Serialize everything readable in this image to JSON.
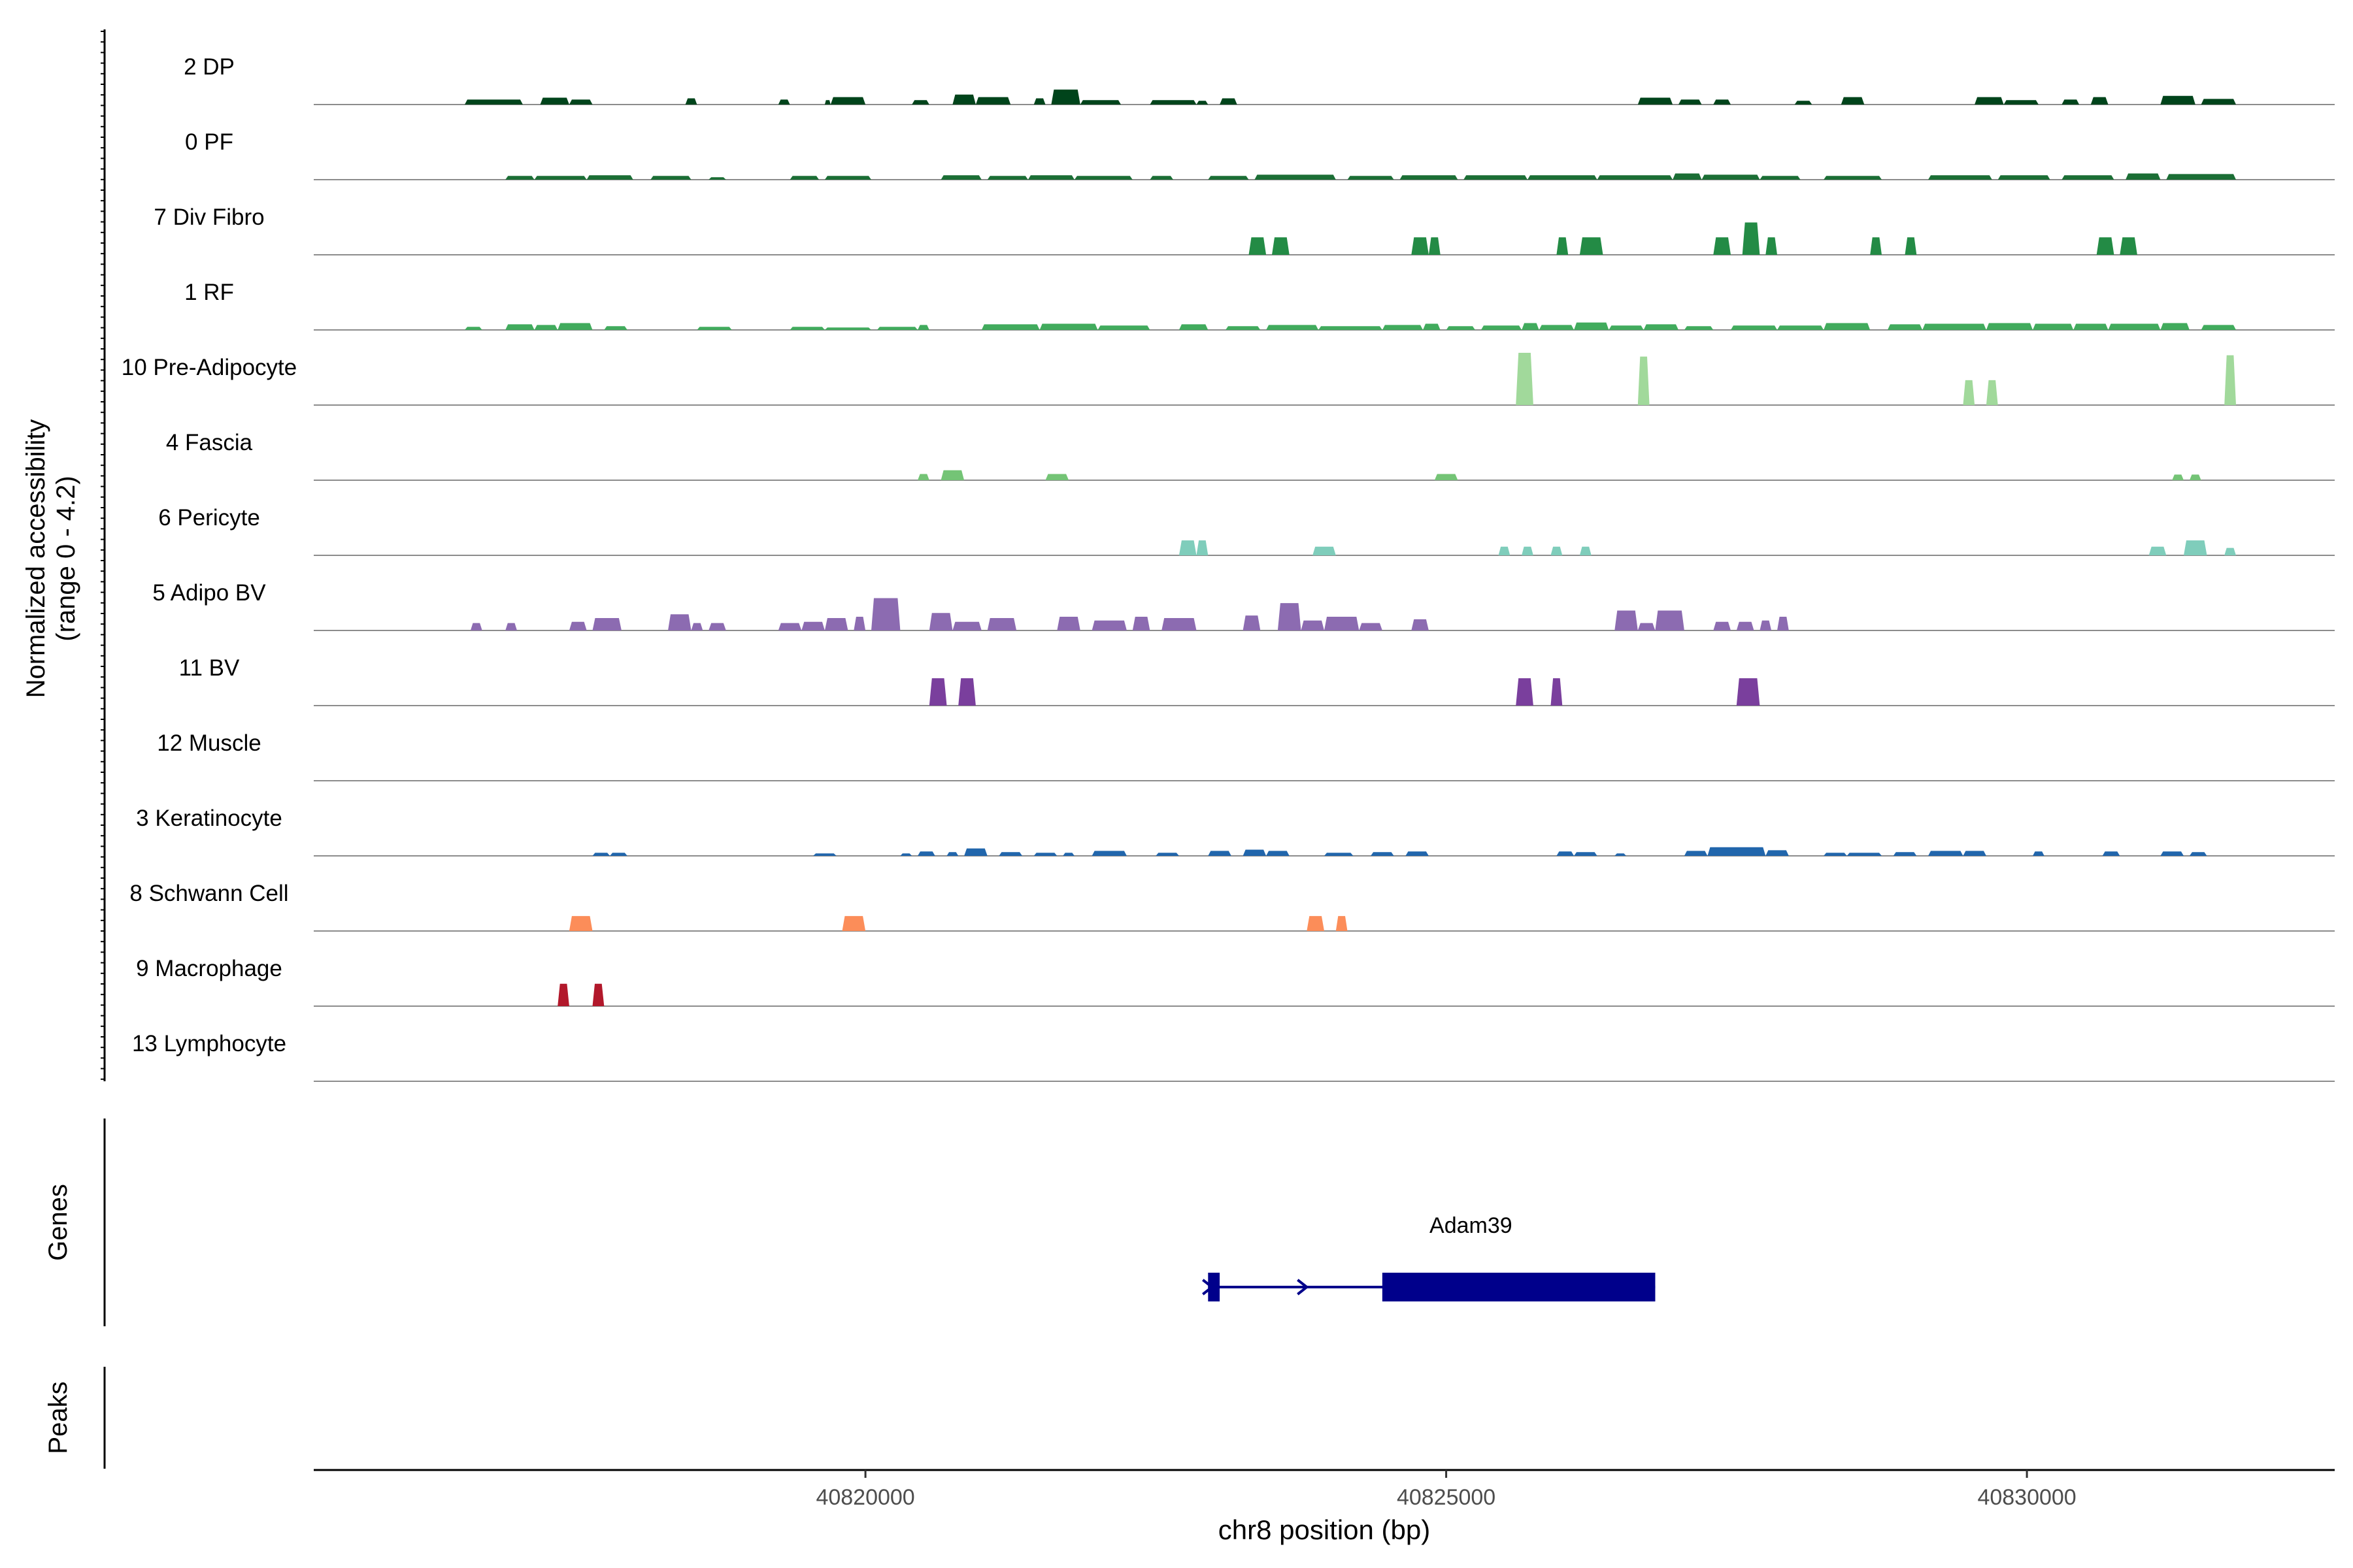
{
  "chart_data": {
    "type": "area",
    "title": "",
    "ylabel": "Normalized accessibility",
    "ylabel_sub": "(range 0 - 4.2)",
    "ylim": [
      0,
      4.2
    ],
    "xlabel": "chr8 position (bp)",
    "xlim": [
      40815250,
      40832650
    ],
    "xticks": [
      40820000,
      40825000,
      40830000
    ],
    "xtick_labels": [
      "40820000",
      "40825000",
      "40830000"
    ],
    "tracks": [
      {
        "name": "2 DP",
        "color": "#00441b",
        "peaks": [
          [
            40816550,
            40817050,
            0.4
          ],
          [
            40817200,
            40817450,
            0.55
          ],
          [
            40817450,
            40817650,
            0.4
          ],
          [
            40818450,
            40818550,
            0.5
          ],
          [
            40819250,
            40819350,
            0.4
          ],
          [
            40819650,
            40819700,
            0.35
          ],
          [
            40819700,
            40820000,
            0.6
          ],
          [
            40820400,
            40820550,
            0.35
          ],
          [
            40820750,
            40820950,
            0.8
          ],
          [
            40820950,
            40821250,
            0.6
          ],
          [
            40821450,
            40821550,
            0.5
          ],
          [
            40821600,
            40821850,
            1.2
          ],
          [
            40821850,
            40822200,
            0.35
          ],
          [
            40822450,
            40822850,
            0.35
          ],
          [
            40822850,
            40822950,
            0.3
          ],
          [
            40823050,
            40823200,
            0.5
          ],
          [
            40826650,
            40826950,
            0.55
          ],
          [
            40827000,
            40827200,
            0.4
          ],
          [
            40827300,
            40827450,
            0.4
          ],
          [
            40828000,
            40828150,
            0.3
          ],
          [
            40828400,
            40828600,
            0.6
          ],
          [
            40829550,
            40829800,
            0.6
          ],
          [
            40829800,
            40830100,
            0.35
          ],
          [
            40830300,
            40830450,
            0.4
          ],
          [
            40830550,
            40830700,
            0.6
          ],
          [
            40831150,
            40831450,
            0.7
          ],
          [
            40831500,
            40831800,
            0.45
          ]
        ]
      },
      {
        "name": "0 PF",
        "color": "#1b6e35",
        "peaks": [
          [
            40816900,
            40817150,
            0.3
          ],
          [
            40817150,
            40817600,
            0.3
          ],
          [
            40817600,
            40818000,
            0.35
          ],
          [
            40818150,
            40818500,
            0.3
          ],
          [
            40818650,
            40818800,
            0.2
          ],
          [
            40819350,
            40819600,
            0.3
          ],
          [
            40819650,
            40820050,
            0.3
          ],
          [
            40820650,
            40821000,
            0.35
          ],
          [
            40821050,
            40821400,
            0.3
          ],
          [
            40821400,
            40821800,
            0.35
          ],
          [
            40821800,
            40822300,
            0.3
          ],
          [
            40822450,
            40822650,
            0.3
          ],
          [
            40822950,
            40823300,
            0.3
          ],
          [
            40823350,
            40824050,
            0.4
          ],
          [
            40824150,
            40824550,
            0.3
          ],
          [
            40824600,
            40825100,
            0.35
          ],
          [
            40825150,
            40825700,
            0.35
          ],
          [
            40825700,
            40826300,
            0.35
          ],
          [
            40826300,
            40826950,
            0.35
          ],
          [
            40826950,
            40827200,
            0.5
          ],
          [
            40827200,
            40827700,
            0.4
          ],
          [
            40827700,
            40828050,
            0.3
          ],
          [
            40828250,
            40828750,
            0.3
          ],
          [
            40829150,
            40829700,
            0.35
          ],
          [
            40829750,
            40830200,
            0.35
          ],
          [
            40830300,
            40830750,
            0.35
          ],
          [
            40830850,
            40831150,
            0.5
          ],
          [
            40831200,
            40831800,
            0.45
          ]
        ]
      },
      {
        "name": "7 Div Fibro",
        "color": "#238b45",
        "peaks": [
          [
            40823300,
            40823450,
            1.4
          ],
          [
            40823500,
            40823650,
            1.4
          ],
          [
            40824700,
            40824850,
            1.4
          ],
          [
            40824850,
            40824950,
            1.4
          ],
          [
            40825950,
            40826050,
            1.4
          ],
          [
            40826150,
            40826350,
            1.4
          ],
          [
            40827300,
            40827450,
            1.4
          ],
          [
            40827550,
            40827700,
            2.6
          ],
          [
            40827750,
            40827850,
            1.4
          ],
          [
            40828650,
            40828750,
            1.4
          ],
          [
            40828950,
            40829050,
            1.4
          ],
          [
            40830600,
            40830750,
            1.4
          ],
          [
            40830800,
            40830950,
            1.4
          ]
        ]
      },
      {
        "name": "1 RF",
        "color": "#41ab5d",
        "peaks": [
          [
            40816550,
            40816700,
            0.25
          ],
          [
            40816900,
            40817150,
            0.45
          ],
          [
            40817150,
            40817350,
            0.4
          ],
          [
            40817350,
            40817650,
            0.55
          ],
          [
            40817750,
            40817950,
            0.3
          ],
          [
            40818550,
            40818850,
            0.25
          ],
          [
            40819350,
            40819650,
            0.25
          ],
          [
            40819650,
            40820050,
            0.2
          ],
          [
            40820100,
            40820450,
            0.25
          ],
          [
            40820450,
            40820550,
            0.4
          ],
          [
            40821000,
            40821500,
            0.45
          ],
          [
            40821500,
            40822000,
            0.5
          ],
          [
            40822000,
            40822450,
            0.35
          ],
          [
            40822700,
            40822950,
            0.45
          ],
          [
            40823100,
            40823400,
            0.3
          ],
          [
            40823450,
            40823900,
            0.4
          ],
          [
            40823900,
            40824450,
            0.3
          ],
          [
            40824450,
            40824800,
            0.4
          ],
          [
            40824800,
            40824950,
            0.5
          ],
          [
            40825000,
            40825250,
            0.3
          ],
          [
            40825300,
            40825650,
            0.35
          ],
          [
            40825650,
            40825800,
            0.55
          ],
          [
            40825800,
            40826100,
            0.4
          ],
          [
            40826100,
            40826400,
            0.6
          ],
          [
            40826400,
            40826700,
            0.35
          ],
          [
            40826700,
            40827000,
            0.45
          ],
          [
            40827050,
            40827300,
            0.3
          ],
          [
            40827450,
            40827850,
            0.35
          ],
          [
            40827850,
            40828250,
            0.35
          ],
          [
            40828250,
            40828650,
            0.55
          ],
          [
            40828800,
            40829100,
            0.45
          ],
          [
            40829100,
            40829650,
            0.5
          ],
          [
            40829650,
            40830050,
            0.55
          ],
          [
            40830050,
            40830400,
            0.5
          ],
          [
            40830400,
            40830700,
            0.5
          ],
          [
            40830700,
            40831150,
            0.5
          ],
          [
            40831150,
            40831400,
            0.55
          ],
          [
            40831500,
            40831800,
            0.4
          ]
        ]
      },
      {
        "name": "10 Pre-Adipocyte",
        "color": "#a1d99b",
        "peaks": [
          [
            40825600,
            40825750,
            4.2
          ],
          [
            40826650,
            40826750,
            3.9
          ],
          [
            40829450,
            40829550,
            2.0
          ],
          [
            40829650,
            40829750,
            2.0
          ],
          [
            40831700,
            40831800,
            4.0
          ]
        ]
      },
      {
        "name": "4 Fascia",
        "color": "#74c476",
        "peaks": [
          [
            40820450,
            40820550,
            0.5
          ],
          [
            40820650,
            40820850,
            0.8
          ],
          [
            40821550,
            40821750,
            0.5
          ],
          [
            40824900,
            40825100,
            0.5
          ],
          [
            40831250,
            40831350,
            0.45
          ],
          [
            40831400,
            40831500,
            0.45
          ]
        ]
      },
      {
        "name": "6 Pericyte",
        "color": "#7fcdbb",
        "peaks": [
          [
            40822700,
            40822850,
            1.2
          ],
          [
            40822850,
            40822950,
            1.2
          ],
          [
            40823850,
            40824050,
            0.7
          ],
          [
            40825450,
            40825550,
            0.7
          ],
          [
            40825650,
            40825750,
            0.7
          ],
          [
            40825900,
            40826000,
            0.7
          ],
          [
            40826150,
            40826250,
            0.7
          ],
          [
            40831050,
            40831200,
            0.7
          ],
          [
            40831350,
            40831550,
            1.2
          ],
          [
            40831700,
            40831800,
            0.6
          ]
        ]
      },
      {
        "name": "5 Adipo BV",
        "color": "#8c6bb1",
        "peaks": [
          [
            40816600,
            40816700,
            0.6
          ],
          [
            40816900,
            40817000,
            0.6
          ],
          [
            40817450,
            40817600,
            0.7
          ],
          [
            40817650,
            40817900,
            1.0
          ],
          [
            40818300,
            40818500,
            1.3
          ],
          [
            40818500,
            40818600,
            0.6
          ],
          [
            40818650,
            40818800,
            0.6
          ],
          [
            40819250,
            40819450,
            0.6
          ],
          [
            40819450,
            40819650,
            0.7
          ],
          [
            40819650,
            40819850,
            1.0
          ],
          [
            40819900,
            40820000,
            1.1
          ],
          [
            40820050,
            40820300,
            2.6
          ],
          [
            40820550,
            40820750,
            1.4
          ],
          [
            40820750,
            40821000,
            0.7
          ],
          [
            40821050,
            40821300,
            1.0
          ],
          [
            40821650,
            40821850,
            1.1
          ],
          [
            40821950,
            40822250,
            0.8
          ],
          [
            40822300,
            40822450,
            1.1
          ],
          [
            40822550,
            40822850,
            1.0
          ],
          [
            40823250,
            40823400,
            1.2
          ],
          [
            40823550,
            40823750,
            2.2
          ],
          [
            40823750,
            40823950,
            0.8
          ],
          [
            40823950,
            40824250,
            1.1
          ],
          [
            40824250,
            40824450,
            0.6
          ],
          [
            40824700,
            40824850,
            0.9
          ],
          [
            40826450,
            40826650,
            1.6
          ],
          [
            40826650,
            40826800,
            0.6
          ],
          [
            40826800,
            40827050,
            1.6
          ],
          [
            40827300,
            40827450,
            0.7
          ],
          [
            40827500,
            40827650,
            0.7
          ],
          [
            40827700,
            40827800,
            0.8
          ],
          [
            40827850,
            40827950,
            1.1
          ]
        ]
      },
      {
        "name": "11 BV",
        "color": "#7a3f9d",
        "peaks": [
          [
            40820550,
            40820700,
            2.2
          ],
          [
            40820800,
            40820950,
            2.2
          ],
          [
            40825600,
            40825750,
            2.2
          ],
          [
            40825900,
            40826000,
            2.2
          ],
          [
            40827500,
            40827700,
            2.2
          ]
        ]
      },
      {
        "name": "12 Muscle",
        "color": "#6a51a3",
        "peaks": []
      },
      {
        "name": "3 Keratinocyte",
        "color": "#2166ac",
        "peaks": [
          [
            40817650,
            40817800,
            0.25
          ],
          [
            40817800,
            40817950,
            0.25
          ],
          [
            40819550,
            40819750,
            0.2
          ],
          [
            40820300,
            40820400,
            0.2
          ],
          [
            40820450,
            40820600,
            0.35
          ],
          [
            40820700,
            40820800,
            0.3
          ],
          [
            40820850,
            40821050,
            0.6
          ],
          [
            40821150,
            40821350,
            0.3
          ],
          [
            40821450,
            40821650,
            0.25
          ],
          [
            40821700,
            40821800,
            0.25
          ],
          [
            40821950,
            40822250,
            0.4
          ],
          [
            40822500,
            40822700,
            0.25
          ],
          [
            40822950,
            40823150,
            0.4
          ],
          [
            40823250,
            40823450,
            0.5
          ],
          [
            40823450,
            40823650,
            0.4
          ],
          [
            40823950,
            40824200,
            0.25
          ],
          [
            40824350,
            40824550,
            0.3
          ],
          [
            40824650,
            40824850,
            0.35
          ],
          [
            40825950,
            40826100,
            0.35
          ],
          [
            40826100,
            40826300,
            0.3
          ],
          [
            40826450,
            40826550,
            0.2
          ],
          [
            40827050,
            40827250,
            0.4
          ],
          [
            40827250,
            40827750,
            0.7
          ],
          [
            40827750,
            40827950,
            0.45
          ],
          [
            40828250,
            40828450,
            0.25
          ],
          [
            40828450,
            40828750,
            0.25
          ],
          [
            40828850,
            40829050,
            0.3
          ],
          [
            40829150,
            40829450,
            0.4
          ],
          [
            40829450,
            40829650,
            0.4
          ],
          [
            40830050,
            40830150,
            0.35
          ],
          [
            40830650,
            40830800,
            0.35
          ],
          [
            40831150,
            40831350,
            0.35
          ],
          [
            40831400,
            40831550,
            0.3
          ]
        ]
      },
      {
        "name": "8 Schwann Cell",
        "color": "#fc8d59",
        "peaks": [
          [
            40817450,
            40817650,
            1.2
          ],
          [
            40819800,
            40820000,
            1.2
          ],
          [
            40823800,
            40823950,
            1.2
          ],
          [
            40824050,
            40824150,
            1.2
          ]
        ]
      },
      {
        "name": "9 Macrophage",
        "color": "#b2182b",
        "peaks": [
          [
            40817350,
            40817450,
            1.8
          ],
          [
            40817650,
            40817750,
            1.8
          ]
        ]
      },
      {
        "name": "13 Lymphocyte",
        "color": "#d6604d",
        "peaks": []
      }
    ],
    "genes_label": "Genes",
    "peaks_label": "Peaks",
    "gene": {
      "name": "Adam39",
      "start": 40822950,
      "end": 40826800,
      "strand": "+",
      "color": "#00008b",
      "exons": [
        [
          40822950,
          40823050
        ],
        [
          40824450,
          40826800
        ]
      ]
    }
  }
}
